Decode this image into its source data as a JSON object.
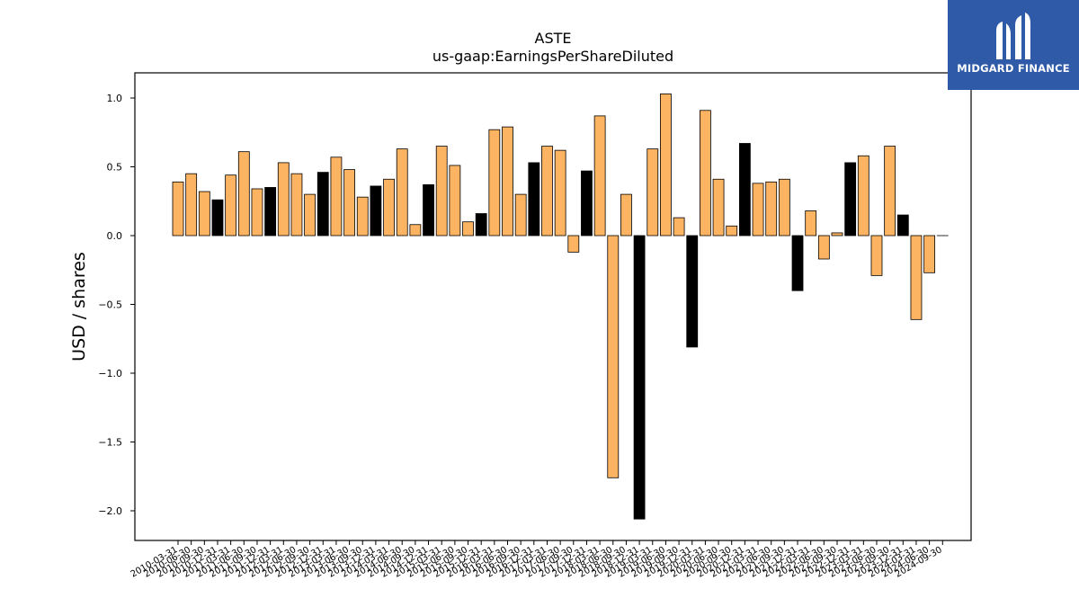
{
  "chart_data": {
    "type": "bar",
    "title": "ASTE",
    "subtitle": "us-gaap:EarningsPerShareDiluted",
    "xlabel": "",
    "ylabel": "USD / shares",
    "ylim": [
      -2.2,
      1.18
    ],
    "yticks": [
      1.0,
      0.5,
      0.0,
      -0.5,
      -1.0,
      -1.5,
      -2.0
    ],
    "ytick_labels": [
      "1.0",
      "0.5",
      "0.0",
      "−0.5",
      "−1.0",
      "−1.5",
      "−2.0"
    ],
    "grid": false,
    "colors": {
      "quarterly": "#fdb462",
      "annual": "#000000",
      "edge": "#000000"
    },
    "categories": [
      "2010-03-31",
      "2010-06-30",
      "2010-09-30",
      "2010-12-31",
      "2011-03-31",
      "2011-06-30",
      "2011-09-30",
      "2011-12-31",
      "2012-03-31",
      "2012-06-30",
      "2012-09-30",
      "2012-12-31",
      "2013-03-31",
      "2013-06-30",
      "2013-09-30",
      "2013-12-31",
      "2014-03-31",
      "2014-06-30",
      "2014-09-30",
      "2014-12-31",
      "2015-03-31",
      "2015-06-30",
      "2015-09-30",
      "2015-12-31",
      "2016-03-31",
      "2016-06-30",
      "2016-09-30",
      "2016-12-31",
      "2017-03-31",
      "2017-06-30",
      "2017-09-30",
      "2017-12-31",
      "2018-03-31",
      "2018-06-30",
      "2018-09-30",
      "2018-12-31",
      "2019-03-31",
      "2019-06-30",
      "2019-09-30",
      "2019-12-31",
      "2020-03-31",
      "2020-06-30",
      "2020-09-30",
      "2020-12-31",
      "2021-03-31",
      "2021-06-30",
      "2021-09-30",
      "2021-12-31",
      "2022-03-31",
      "2022-06-30",
      "2022-09-30",
      "2022-12-31",
      "2023-03-31",
      "2023-06-30",
      "2023-09-30",
      "2023-12-31",
      "2024-03-31",
      "2024-06-30",
      "2024-09-30"
    ],
    "values": [
      0.39,
      0.45,
      0.32,
      0.26,
      0.44,
      0.61,
      0.34,
      0.35,
      0.53,
      0.45,
      0.3,
      0.46,
      0.57,
      0.48,
      0.28,
      0.36,
      0.41,
      0.63,
      0.08,
      0.37,
      0.65,
      0.51,
      0.1,
      0.16,
      0.77,
      0.79,
      0.3,
      0.53,
      0.65,
      0.62,
      -0.12,
      0.47,
      0.87,
      -1.76,
      0.3,
      -2.06,
      0.63,
      1.03,
      0.13,
      -0.81,
      0.91,
      0.41,
      0.07,
      0.67,
      0.38,
      0.39,
      0.41,
      -0.4,
      0.18,
      -0.17,
      0.02,
      0.53,
      0.58,
      -0.29,
      0.65,
      0.15,
      -0.61,
      -0.27,
      0.0
    ],
    "annual": [
      false,
      false,
      false,
      true,
      false,
      false,
      false,
      true,
      false,
      false,
      false,
      true,
      false,
      false,
      false,
      true,
      false,
      false,
      false,
      true,
      false,
      false,
      false,
      true,
      false,
      false,
      false,
      true,
      false,
      false,
      false,
      true,
      false,
      false,
      false,
      true,
      false,
      false,
      false,
      true,
      false,
      false,
      false,
      true,
      false,
      false,
      false,
      true,
      false,
      false,
      false,
      true,
      false,
      false,
      false,
      true,
      false,
      false,
      false
    ]
  },
  "logo": {
    "text": "MIDGARD FINANCE",
    "icon": "midgard-logo-icon",
    "background": "#2f5aa8"
  }
}
